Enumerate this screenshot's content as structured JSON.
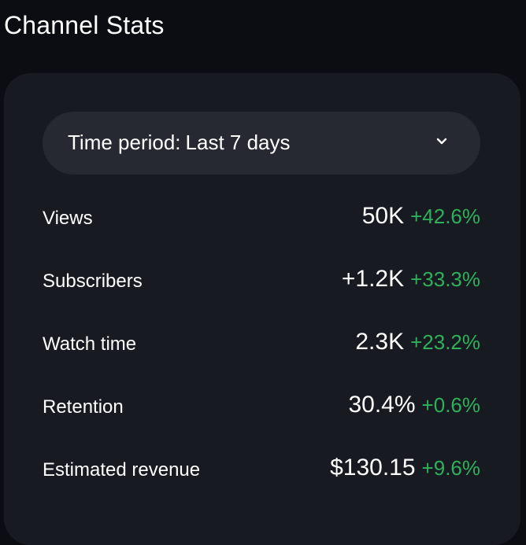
{
  "header": {
    "title": "Channel Stats"
  },
  "period": {
    "prefix": "Time period:",
    "value": "Last 7 days",
    "icon": "chevron-down-icon"
  },
  "stats": [
    {
      "label": "Views",
      "value": "50K",
      "delta": "+42.6%"
    },
    {
      "label": "Subscribers",
      "value": "+1.2K",
      "delta": "+33.3%"
    },
    {
      "label": "Watch time",
      "value": "2.3K",
      "delta": "+23.2%"
    },
    {
      "label": "Retention",
      "value": "30.4%",
      "delta": "+0.6%"
    },
    {
      "label": "Estimated revenue",
      "value": "$130.15",
      "delta": "+9.6%"
    }
  ],
  "colors": {
    "background": "#0b0d13",
    "card": "#181a22",
    "select": "#262932",
    "positive": "#2eb15a",
    "text": "#ffffff"
  }
}
